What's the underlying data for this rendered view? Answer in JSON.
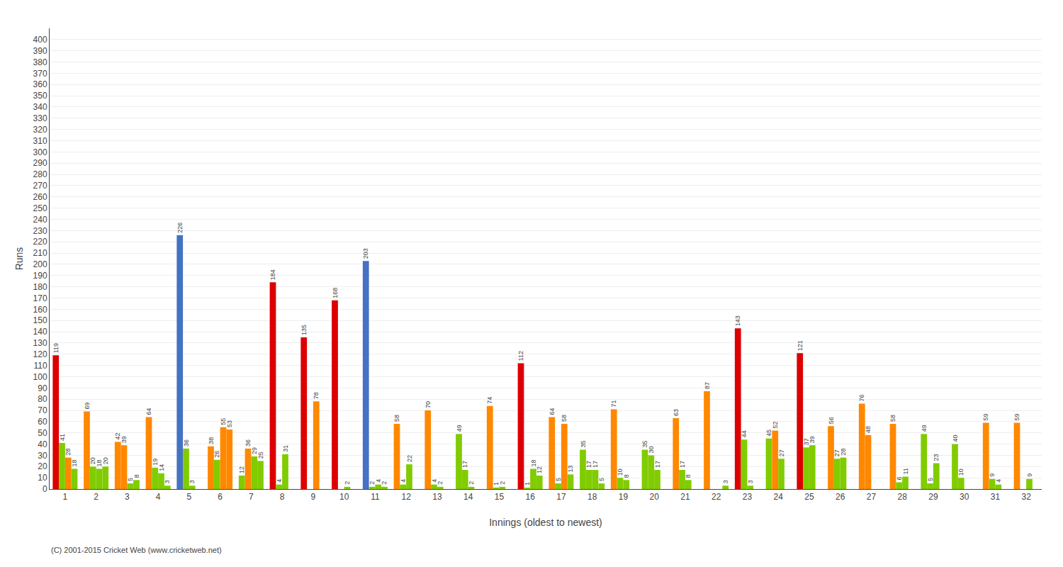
{
  "chart_data": {
    "type": "bar",
    "xlabel": "Innings (oldest to newest)",
    "ylabel": "Runs",
    "annotations": [
      "(C) 2001-2015 Cricket Web (www.cricketweb.net)"
    ],
    "categories": [
      "1",
      "2",
      "3",
      "4",
      "5",
      "6",
      "7",
      "8",
      "9",
      "10",
      "11",
      "12",
      "13",
      "14",
      "15",
      "16",
      "17",
      "18",
      "19",
      "20",
      "21",
      "22",
      "23",
      "24",
      "25",
      "26",
      "27",
      "28",
      "29",
      "30",
      "31",
      "32"
    ],
    "series": [
      {
        "values": [
          119,
          69,
          42,
          64,
          226,
          38,
          12,
          184,
          135,
          168,
          203,
          58,
          70,
          49,
          74,
          112,
          64,
          35,
          71,
          35,
          63,
          87,
          143,
          45,
          121,
          56,
          76,
          58,
          49,
          40,
          59,
          59
        ],
        "value_labels": [
          "119",
          "69",
          "42",
          "64",
          "226",
          "38",
          "12",
          "184",
          "135",
          "168",
          "203",
          "58",
          "70",
          "49",
          "74",
          "112",
          "64",
          "35",
          "71",
          "35",
          "63",
          "87",
          "143",
          "45",
          "121",
          "56",
          "76",
          "58",
          "49",
          "40",
          "59",
          "59"
        ],
        "colors": [
          "#dd0000",
          "#ff8800",
          "#ff8800",
          "#ff8800",
          "#4472c4",
          "#ff8800",
          "#80cc00",
          "#dd0000",
          "#dd0000",
          "#dd0000",
          "#4472c4",
          "#ff8800",
          "#ff8800",
          "#80cc00",
          "#ff8800",
          "#dd0000",
          "#ff8800",
          "#80cc00",
          "#ff8800",
          "#80cc00",
          "#ff8800",
          "#ff8800",
          "#dd0000",
          "#80cc00",
          "#dd0000",
          "#ff8800",
          "#ff8800",
          "#ff8800",
          "#80cc00",
          "#80cc00",
          "#ff8800",
          "#ff8800"
        ]
      },
      {
        "values": [
          41,
          20,
          39,
          19,
          36,
          26,
          36,
          4,
          0,
          0,
          2,
          4,
          4,
          17,
          1,
          1,
          5,
          17,
          10,
          30,
          17,
          0,
          44,
          52,
          37,
          27,
          48,
          6,
          5,
          10,
          9,
          0
        ],
        "value_labels": [
          "41",
          "20",
          "39",
          "19",
          "36",
          "26",
          "36",
          "4",
          null,
          null,
          "2",
          "4",
          "4",
          "17",
          "1",
          "1",
          "5",
          "17",
          "10",
          "30",
          "17",
          null,
          "44",
          "52",
          "37",
          "27",
          "48",
          "6",
          "5",
          "10",
          "9",
          null
        ],
        "colors": [
          "#80cc00",
          "#80cc00",
          "#ff8800",
          "#80cc00",
          "#80cc00",
          "#80cc00",
          "#ff8800",
          "#80cc00",
          "#80cc00",
          "#80cc00",
          "#80cc00",
          "#80cc00",
          "#80cc00",
          "#80cc00",
          "#80cc00",
          "#80cc00",
          "#80cc00",
          "#80cc00",
          "#80cc00",
          "#80cc00",
          "#80cc00",
          "#80cc00",
          "#80cc00",
          "#ff8800",
          "#80cc00",
          "#80cc00",
          "#ff8800",
          "#80cc00",
          "#80cc00",
          "#80cc00",
          "#80cc00",
          "#80cc00"
        ]
      },
      {
        "values": [
          28,
          18,
          5,
          14,
          3,
          55,
          29,
          31,
          78,
          2,
          4,
          22,
          2,
          2,
          2,
          18,
          58,
          17,
          8,
          17,
          8,
          0,
          3,
          27,
          39,
          28,
          0,
          11,
          23,
          0,
          4,
          9
        ],
        "value_labels": [
          "28",
          "18",
          "5",
          "14",
          "3",
          "55",
          "29",
          "31",
          "78",
          "2",
          "4",
          "22",
          "2",
          "2",
          "2",
          "18",
          "58",
          "17",
          "8",
          "17",
          "8",
          null,
          "3",
          "27",
          "39",
          "28",
          null,
          "11",
          "23",
          null,
          "4",
          "9"
        ],
        "colors": [
          "#ff8800",
          "#80cc00",
          "#80cc00",
          "#80cc00",
          "#80cc00",
          "#ff8800",
          "#80cc00",
          "#80cc00",
          "#ff8800",
          "#80cc00",
          "#80cc00",
          "#80cc00",
          "#80cc00",
          "#80cc00",
          "#80cc00",
          "#80cc00",
          "#ff8800",
          "#80cc00",
          "#80cc00",
          "#80cc00",
          "#80cc00",
          "#80cc00",
          "#80cc00",
          "#80cc00",
          "#80cc00",
          "#80cc00",
          "#80cc00",
          "#80cc00",
          "#80cc00",
          "#80cc00",
          "#80cc00",
          "#80cc00"
        ]
      },
      {
        "values": [
          18,
          20,
          8,
          3,
          0,
          53,
          25,
          0,
          0,
          0,
          2,
          0,
          0,
          0,
          0,
          12,
          13,
          5,
          0,
          0,
          0,
          3,
          0,
          0,
          0,
          0,
          0,
          0,
          0,
          0,
          0,
          0
        ],
        "value_labels": [
          "18",
          "20",
          "8",
          "3",
          null,
          "53",
          "25",
          null,
          null,
          null,
          "2",
          null,
          null,
          null,
          null,
          "12",
          "13",
          "5",
          null,
          null,
          null,
          "3",
          null,
          null,
          null,
          null,
          null,
          null,
          null,
          null,
          null,
          null
        ],
        "colors": [
          "#80cc00",
          "#80cc00",
          "#80cc00",
          "#80cc00",
          "#80cc00",
          "#ff8800",
          "#80cc00",
          "#80cc00",
          "#80cc00",
          "#80cc00",
          "#80cc00",
          "#80cc00",
          "#80cc00",
          "#80cc00",
          "#80cc00",
          "#80cc00",
          "#80cc00",
          "#80cc00",
          "#80cc00",
          "#80cc00",
          "#80cc00",
          "#80cc00",
          "#80cc00",
          "#80cc00",
          "#80cc00",
          "#80cc00",
          "#80cc00",
          "#80cc00",
          "#80cc00",
          "#80cc00",
          "#80cc00",
          "#80cc00"
        ]
      }
    ],
    "ylim": [
      0,
      410
    ],
    "yticks": [
      0,
      10,
      20,
      30,
      40,
      50,
      60,
      70,
      80,
      90,
      100,
      110,
      120,
      130,
      140,
      150,
      160,
      170,
      180,
      190,
      200,
      210,
      220,
      230,
      240,
      250,
      260,
      270,
      280,
      290,
      300,
      310,
      320,
      330,
      340,
      350,
      360,
      370,
      380,
      390,
      400
    ],
    "grid": true,
    "data_labels": true
  }
}
